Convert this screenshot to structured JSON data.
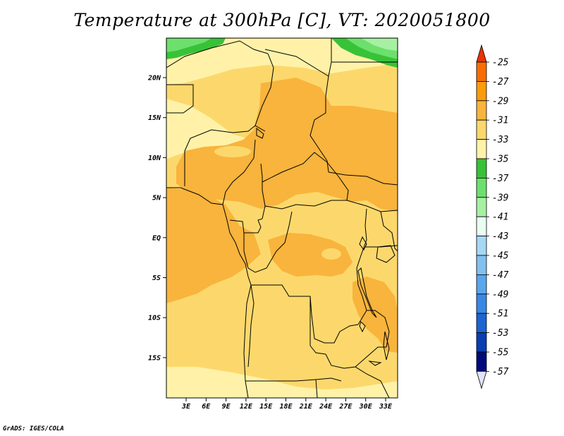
{
  "title": "Temperature at 300hPa [C], VT: 2020051800",
  "footer": "GrADS: IGES/COLA",
  "map": {
    "lat_labels": [
      "20N",
      "15N",
      "10N",
      "5N",
      "EQ",
      "5S",
      "10S",
      "15S"
    ],
    "lon_labels": [
      "3E",
      "6E",
      "9E",
      "12E",
      "15E",
      "18E",
      "21E",
      "24E",
      "27E",
      "30E",
      "33E"
    ]
  },
  "colorbar": {
    "labels": [
      "-25",
      "-27",
      "-29",
      "-31",
      "-33",
      "-35",
      "-37",
      "-39",
      "-41",
      "-43",
      "-45",
      "-47",
      "-49",
      "-51",
      "-53",
      "-55",
      "-57"
    ],
    "colors": [
      "#f04a0a",
      "#f86e05",
      "#fa9c08",
      "#f8b43c",
      "#fcd86c",
      "#fff2a8",
      "#38c238",
      "#6ce06c",
      "#a6f0a2",
      "#e8fff0",
      "#a6d8f6",
      "#82c0f0",
      "#5aa6ec",
      "#3888e6",
      "#1c64d2",
      "#0a3eb2",
      "#000a7a"
    ],
    "top_arrow_color": "#e8320a",
    "bottom_arrow_color": "#e2e2f8"
  },
  "colors": {
    "c29": "#f8b43c",
    "c31": "#fcd86c",
    "c33": "#fff2a8",
    "c37": "#38c238",
    "c39": "#6ce06c",
    "c41": "#a6f0a2"
  }
}
